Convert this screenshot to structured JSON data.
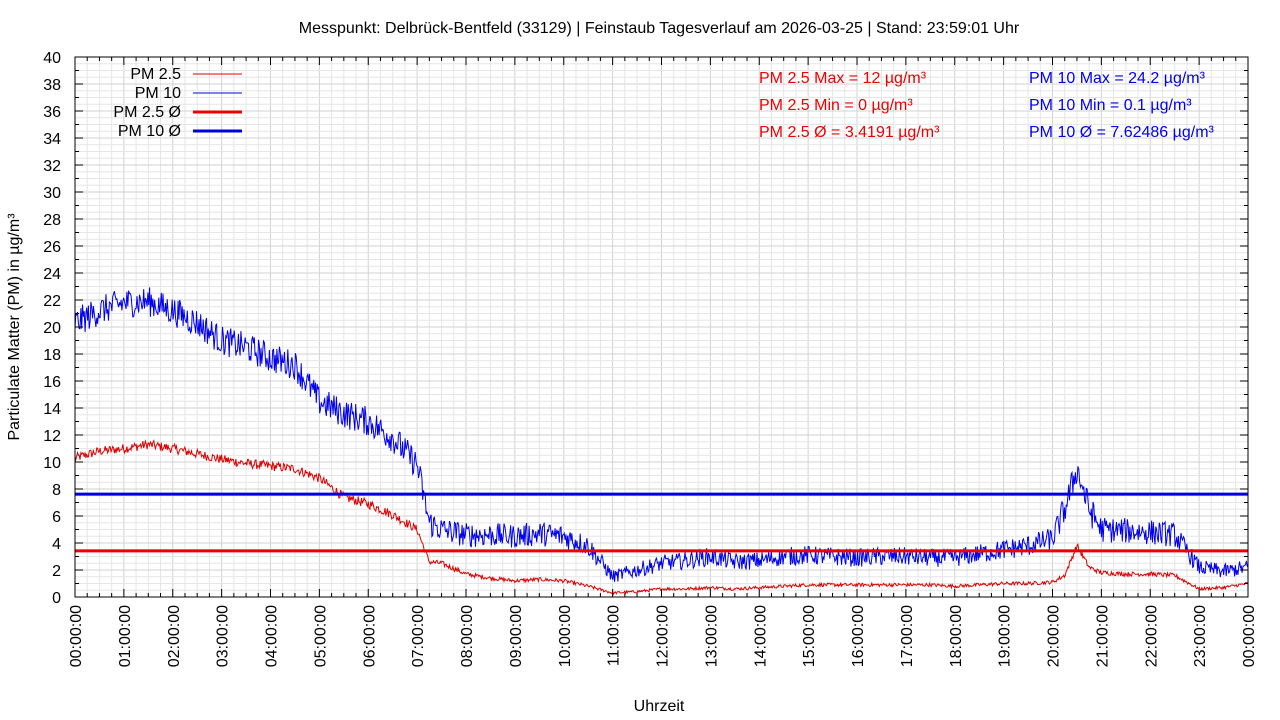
{
  "chart_data": {
    "type": "line",
    "title": "Messpunkt: Delbrück-Bentfeld (33129) | Feinstaub Tagesverlauf am 2026-03-25 | Stand: 23:59:01 Uhr",
    "xlabel": "Uhrzeit",
    "ylabel": "Particulate Matter (PM) in µg/m³",
    "xlim": [
      "00:00:00",
      "24:00:00"
    ],
    "ylim": [
      0,
      40
    ],
    "x_ticks": [
      "00:00:00",
      "01:00:00",
      "02:00:00",
      "03:00:00",
      "04:00:00",
      "05:00:00",
      "06:00:00",
      "07:00:00",
      "08:00:00",
      "09:00:00",
      "10:00:00",
      "11:00:00",
      "12:00:00",
      "13:00:00",
      "14:00:00",
      "15:00:00",
      "16:00:00",
      "17:00:00",
      "18:00:00",
      "19:00:00",
      "20:00:00",
      "21:00:00",
      "22:00:00",
      "23:00:00",
      "00:00:00"
    ],
    "y_ticks": [
      0,
      2,
      4,
      6,
      8,
      10,
      12,
      14,
      16,
      18,
      20,
      22,
      24,
      26,
      28,
      30,
      32,
      34,
      36,
      38,
      40
    ],
    "grid": true,
    "legend_position": "top-left",
    "legend": [
      "PM 2.5",
      "PM 10",
      "PM 2.5 Ø",
      "PM 10 Ø"
    ],
    "hours": [
      0,
      0.5,
      1,
      1.5,
      2,
      2.5,
      3,
      3.5,
      4,
      4.5,
      5,
      5.5,
      6,
      6.5,
      7,
      7.25,
      7.5,
      8,
      8.5,
      9,
      9.5,
      10,
      10.5,
      11,
      11.5,
      12,
      12.5,
      13,
      13.5,
      14,
      14.5,
      15,
      15.5,
      16,
      16.5,
      17,
      17.5,
      18,
      18.5,
      19,
      19.5,
      20,
      20.25,
      20.5,
      20.75,
      21,
      21.5,
      22,
      22.5,
      23,
      23.5,
      24
    ],
    "series": [
      {
        "name": "PM 2.5",
        "color": "#dd0000",
        "values": [
          10.3,
          10.8,
          11.0,
          11.3,
          11.0,
          10.6,
          10.2,
          9.9,
          9.7,
          9.5,
          8.8,
          7.4,
          6.9,
          6.1,
          5.0,
          2.6,
          2.5,
          1.7,
          1.4,
          1.2,
          1.3,
          1.2,
          0.8,
          0.3,
          0.4,
          0.6,
          0.6,
          0.7,
          0.6,
          0.7,
          0.8,
          0.9,
          0.9,
          0.9,
          0.9,
          0.9,
          0.9,
          0.8,
          0.9,
          1.0,
          1.0,
          1.1,
          1.6,
          3.8,
          2.2,
          1.8,
          1.7,
          1.7,
          1.6,
          0.6,
          0.7,
          1.0
        ]
      },
      {
        "name": "PM 10",
        "color": "#0000ee",
        "values": [
          20.3,
          21.2,
          21.8,
          21.9,
          21.2,
          20.3,
          19.0,
          18.5,
          17.7,
          17.2,
          14.5,
          13.6,
          13.0,
          11.8,
          9.8,
          5.5,
          5.0,
          4.6,
          4.6,
          4.5,
          4.7,
          4.5,
          3.8,
          1.5,
          2.0,
          2.5,
          2.7,
          3.0,
          2.6,
          2.7,
          3.0,
          3.1,
          3.0,
          2.9,
          3.0,
          3.0,
          2.9,
          2.9,
          3.2,
          3.5,
          3.8,
          4.3,
          6.5,
          9.5,
          6.5,
          5.0,
          4.9,
          4.8,
          4.6,
          2.2,
          1.9,
          2.2
        ]
      }
    ],
    "averages": [
      {
        "name": "PM 2.5 Ø",
        "color": "#ee0000",
        "value": 3.4191
      },
      {
        "name": "PM 10 Ø",
        "color": "#0000dd",
        "value": 7.62486
      }
    ],
    "annotations": {
      "pm25": [
        "PM 2.5 Max = 12 µg/m³",
        "PM 2.5 Min = 0 µg/m³",
        "PM 2.5 Ø = 3.4191 µg/m³"
      ],
      "pm10": [
        "PM 10 Max = 24.2 µg/m³",
        "PM 10 Min = 0.1 µg/m³",
        "PM 10 Ø = 7.62486 µg/m³"
      ]
    }
  }
}
